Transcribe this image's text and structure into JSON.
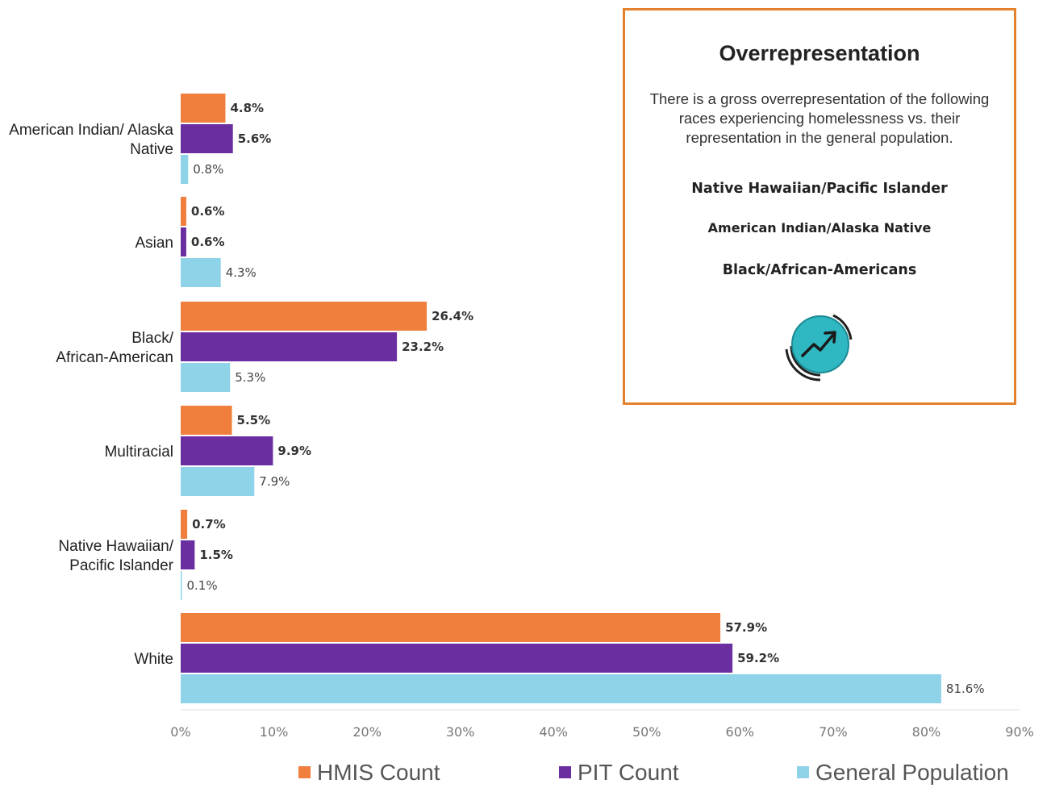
{
  "chart_data": {
    "type": "bar",
    "orientation": "horizontal",
    "categories": [
      [
        "American Indian/ Alaska",
        "Native"
      ],
      [
        "Asian"
      ],
      [
        "Black/",
        "African-American"
      ],
      [
        "Multiracial"
      ],
      [
        "Native Hawaiian/",
        "Pacific Islander"
      ],
      [
        "White"
      ]
    ],
    "series": [
      {
        "name": "HMIS Count",
        "color": "#f07f3e",
        "values": [
          4.8,
          0.6,
          26.4,
          5.5,
          0.7,
          57.9
        ],
        "labels": [
          "4.8%",
          "0.6%",
          "26.4%",
          "5.5%",
          "0.7%",
          "57.9%"
        ]
      },
      {
        "name": "PIT Count",
        "color": "#6a2ea0",
        "values": [
          5.6,
          0.6,
          23.2,
          9.9,
          1.5,
          59.2
        ],
        "labels": [
          "5.6%",
          "0.6%",
          "23.2%",
          "9.9%",
          "1.5%",
          "59.2%"
        ]
      },
      {
        "name": "General Population",
        "color": "#8fd3e9",
        "values": [
          0.8,
          4.3,
          5.3,
          7.9,
          0.1,
          81.6
        ],
        "labels": [
          "0.8%",
          "4.3%",
          "5.3%",
          "7.9%",
          "0.1%",
          "81.6%"
        ]
      }
    ],
    "xlim": [
      0,
      90
    ],
    "xticks": [
      "0%",
      "10%",
      "20%",
      "30%",
      "40%",
      "50%",
      "60%",
      "70%",
      "80%",
      "90%"
    ],
    "legend_position": "bottom",
    "grid": false
  },
  "callout": {
    "title": "Overrepresentation",
    "body": "There is a gross overrepresentation of the following races experiencing homelessness vs. their representation in the general population.",
    "items": [
      "Native Hawaiian/Pacific Islander",
      "American Indian/Alaska Native",
      "Black/African-Americans"
    ],
    "icon": "trend-up-icon",
    "border_color": "#e5812d",
    "icon_color": "#2fb8c2"
  }
}
